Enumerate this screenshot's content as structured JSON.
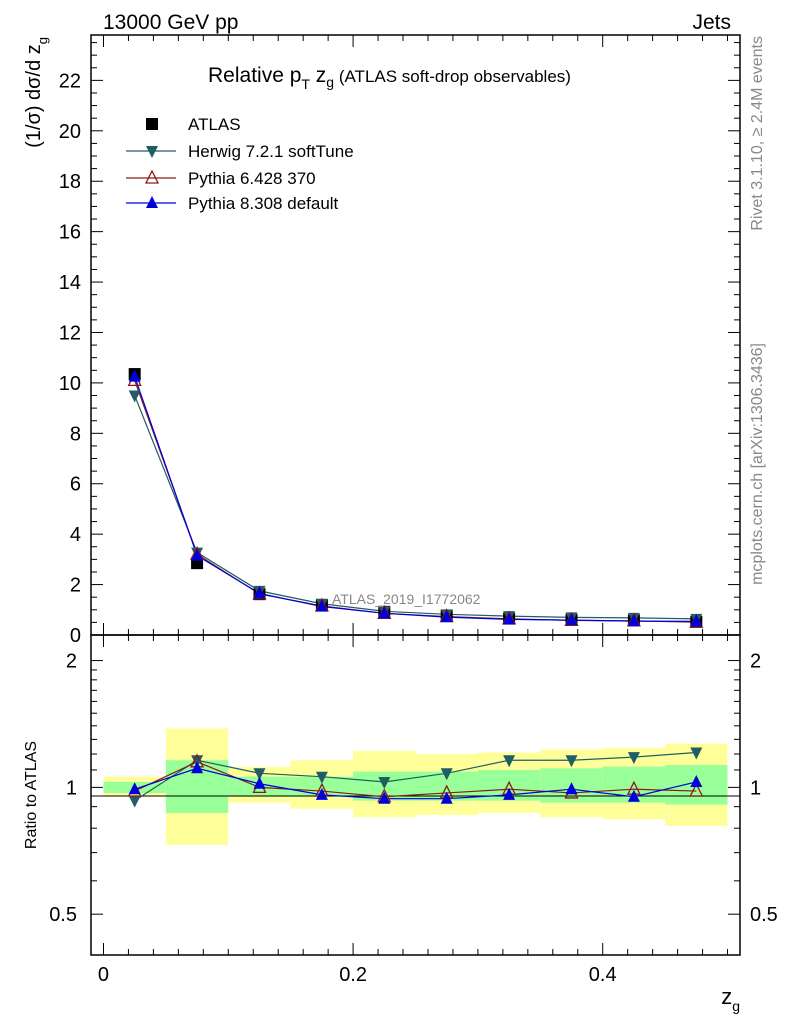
{
  "header": {
    "left": "13000 GeV pp",
    "right": "Jets"
  },
  "side_text": {
    "rivet": "Rivet 3.1.10, ≥ 2.4M events",
    "mcplots": "mcplots.cern.ch [arXiv:1306.3436]"
  },
  "chart_data": [
    {
      "type": "line",
      "panel": "main",
      "title_main": "Relative p",
      "title_sub_T": "T",
      "title_z": " z",
      "title_sub_g": "g",
      "title_rest": " (ATLAS soft-drop observables)",
      "ylabel": "(1/σ) dσ/d z",
      "ylabel_sub": "g",
      "watermark": "ATLAS_2019_I1772062",
      "xlim": [
        -0.01,
        0.51
      ],
      "ylim": [
        0,
        23.8
      ],
      "y_ticks": [
        0,
        2,
        4,
        6,
        8,
        10,
        12,
        14,
        16,
        18,
        20,
        22
      ],
      "y_tick_labels": [
        "0",
        "2",
        "4",
        "6",
        "8",
        "10",
        "12",
        "14",
        "16",
        "18",
        "20",
        "22"
      ],
      "legend_position": "top-left",
      "x": [
        0.025,
        0.075,
        0.125,
        0.175,
        0.225,
        0.275,
        0.325,
        0.375,
        0.425,
        0.475
      ],
      "series": [
        {
          "name": "ATLAS",
          "marker": "square",
          "color": "#000000",
          "values": [
            10.35,
            2.85,
            1.62,
            1.18,
            0.92,
            0.76,
            0.65,
            0.6,
            0.58,
            0.52
          ]
        },
        {
          "name": "Herwig 7.2.1 softTune",
          "marker": "triangle-down",
          "color": "#1f5e64",
          "values": [
            9.5,
            3.27,
            1.75,
            1.24,
            0.94,
            0.82,
            0.75,
            0.7,
            0.68,
            0.64
          ]
        },
        {
          "name": "Pythia 6.428 370",
          "marker": "triangle-up-open",
          "color": "#8b1a1a",
          "values": [
            10.1,
            3.2,
            1.63,
            1.15,
            0.86,
            0.73,
            0.64,
            0.58,
            0.56,
            0.51
          ]
        },
        {
          "name": "Pythia 8.308 default",
          "marker": "triangle-up",
          "color": "#0000dd",
          "values": [
            10.25,
            3.15,
            1.65,
            1.13,
            0.86,
            0.71,
            0.62,
            0.59,
            0.55,
            0.54
          ]
        }
      ]
    },
    {
      "type": "line",
      "panel": "ratio",
      "ylabel": "Ratio to ATLAS",
      "xlabel": "z",
      "xlabel_sub": "g",
      "xlim": [
        -0.01,
        0.51
      ],
      "ylim": [
        0.4,
        2.3
      ],
      "scale": "log",
      "y_ticks": [
        0.5,
        1,
        2
      ],
      "y_tick_labels": [
        "0.5",
        "1",
        "2"
      ],
      "x_ticks": [
        0,
        0.2,
        0.4
      ],
      "x_tick_labels": [
        "0",
        "0.2",
        "0.4"
      ],
      "bins": [
        [
          0.0,
          0.05
        ],
        [
          0.05,
          0.1
        ],
        [
          0.1,
          0.15
        ],
        [
          0.15,
          0.2
        ],
        [
          0.2,
          0.25
        ],
        [
          0.25,
          0.3
        ],
        [
          0.3,
          0.35
        ],
        [
          0.35,
          0.4
        ],
        [
          0.4,
          0.45
        ],
        [
          0.45,
          0.5
        ]
      ],
      "band_stat": {
        "color": "#99ff99",
        "low": [
          0.97,
          0.87,
          0.95,
          0.95,
          0.93,
          0.93,
          0.93,
          0.92,
          0.92,
          0.91
        ],
        "high": [
          1.03,
          1.16,
          1.06,
          1.06,
          1.09,
          1.09,
          1.1,
          1.11,
          1.12,
          1.13
        ]
      },
      "band_syst": {
        "color": "#ffff99",
        "low": [
          0.95,
          0.73,
          0.92,
          0.89,
          0.85,
          0.86,
          0.87,
          0.85,
          0.84,
          0.81
        ],
        "high": [
          1.06,
          1.38,
          1.12,
          1.16,
          1.22,
          1.2,
          1.21,
          1.23,
          1.24,
          1.27
        ]
      },
      "x": [
        0.025,
        0.075,
        0.125,
        0.175,
        0.225,
        0.275,
        0.325,
        0.375,
        0.425,
        0.475
      ],
      "series": [
        {
          "name": "Herwig 7.2.1 softTune",
          "marker": "triangle-down",
          "color": "#1f5e64",
          "values": [
            0.93,
            1.16,
            1.08,
            1.06,
            1.03,
            1.08,
            1.16,
            1.16,
            1.18,
            1.21
          ]
        },
        {
          "name": "Pythia 6.428 370",
          "marker": "triangle-up-open",
          "color": "#8b1a1a",
          "values": [
            0.98,
            1.15,
            1.0,
            0.98,
            0.95,
            0.97,
            0.99,
            0.97,
            0.99,
            0.98
          ]
        },
        {
          "name": "Pythia 8.308 default",
          "marker": "triangle-up",
          "color": "#0000dd",
          "values": [
            0.99,
            1.11,
            1.02,
            0.96,
            0.94,
            0.94,
            0.96,
            0.99,
            0.95,
            1.03
          ]
        }
      ]
    }
  ]
}
